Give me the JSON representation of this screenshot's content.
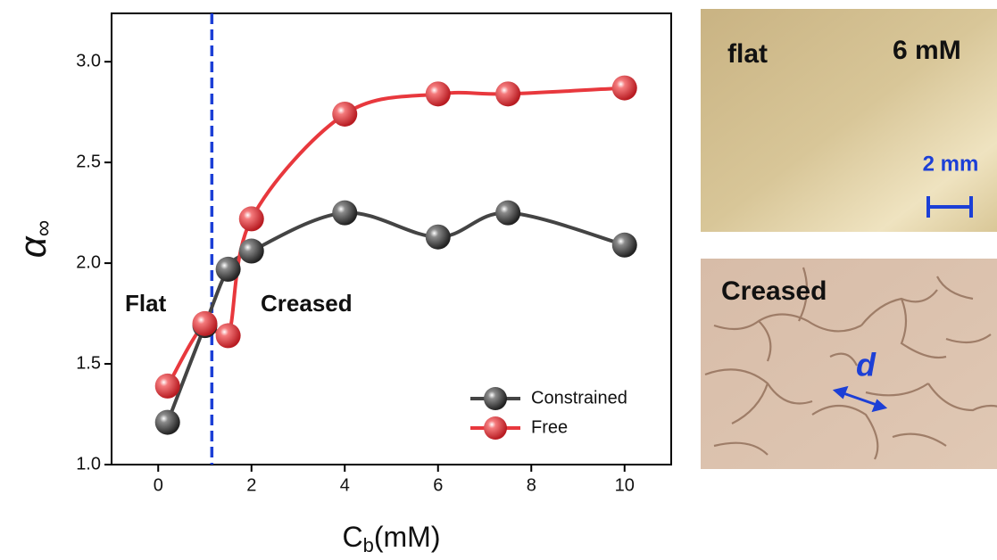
{
  "chart_data": {
    "type": "line",
    "xlabel": {
      "main": "C",
      "sub": "b",
      "unit": "(mM)"
    },
    "ylabel": {
      "symbol": "α",
      "sub": "∞"
    },
    "xlim": [
      -1,
      11
    ],
    "ylim": [
      1,
      3.24
    ],
    "xticks": [
      0,
      2,
      4,
      6,
      8,
      10
    ],
    "yticks": [
      {
        "value": 1,
        "label": "1.0"
      },
      1.5,
      {
        "value": 2,
        "label": "2.0"
      },
      2.5,
      {
        "value": 3,
        "label": "3.0"
      }
    ],
    "legend": "lower right",
    "vline": {
      "x": 1.15,
      "color": "#1c3fd6"
    },
    "annotations": [
      "Flat",
      "Creased"
    ],
    "series": [
      {
        "name": "Constrained",
        "color": "#444444",
        "x": [
          0.2,
          1,
          1.5,
          2,
          4,
          6,
          7.5,
          10
        ],
        "values": [
          1.21,
          1.69,
          1.97,
          2.06,
          2.25,
          2.13,
          2.25,
          2.09
        ]
      },
      {
        "name": "Free",
        "color": "#e8383d",
        "x": [
          0.2,
          1,
          1.5,
          2,
          4,
          6,
          7.5,
          10
        ],
        "values": [
          1.39,
          1.7,
          1.64,
          2.22,
          2.74,
          2.84,
          2.84,
          2.87
        ]
      }
    ]
  },
  "panels": [
    {
      "label": "flat",
      "concentration": "6 mM",
      "scale_bar": "2 mm"
    },
    {
      "label": "Creased",
      "marker": "d"
    }
  ]
}
